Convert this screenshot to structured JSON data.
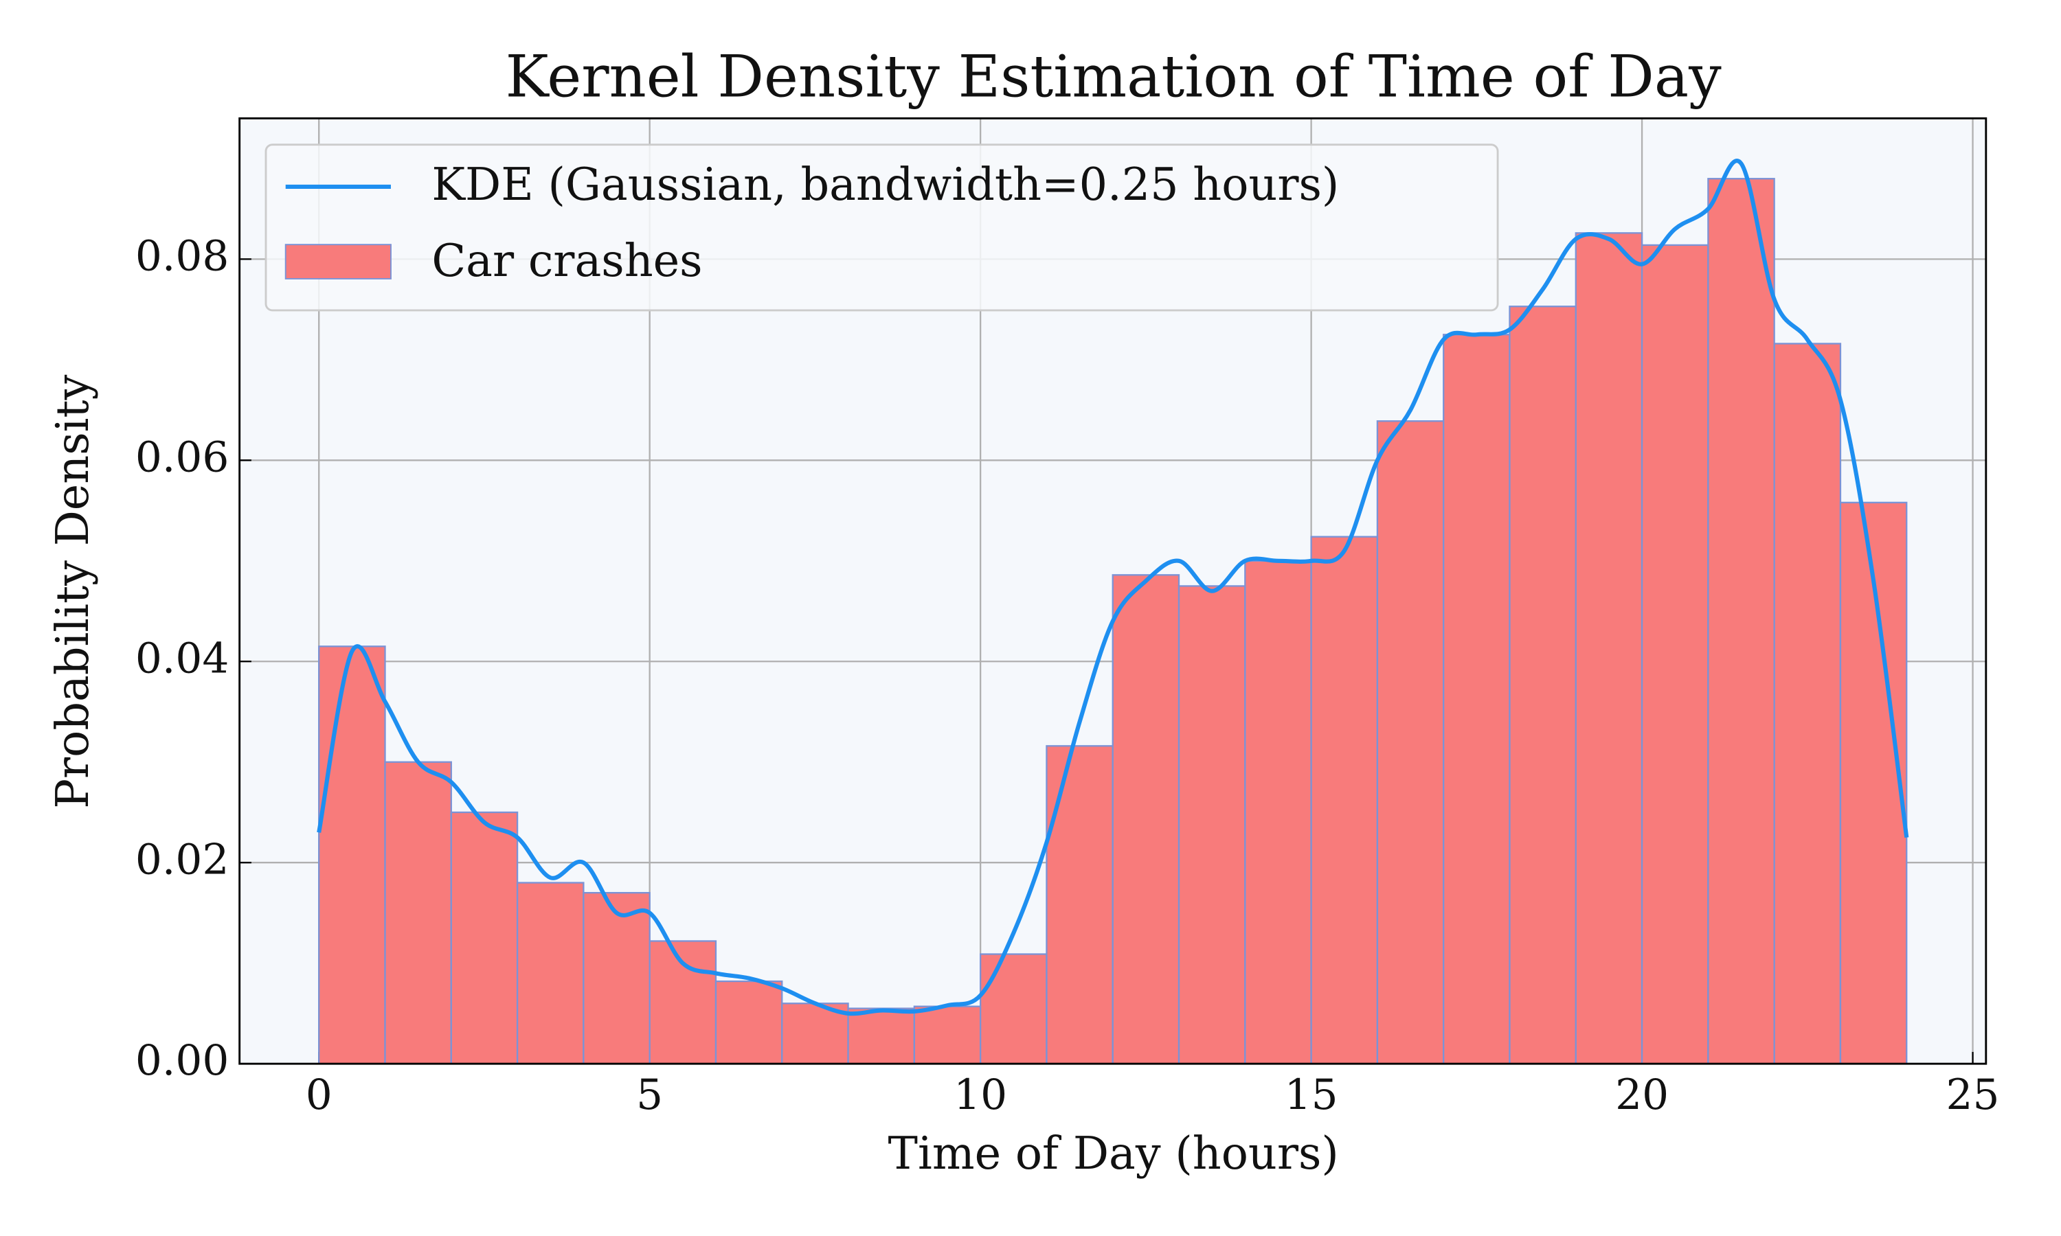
{
  "chart_data": {
    "type": "histogram",
    "title": "Kernel Density Estimation of Time of Day",
    "xlabel": "Time of Day (hours)",
    "ylabel": "Probability Density",
    "bins": [
      0,
      1,
      2,
      3,
      4,
      5,
      6,
      7,
      8,
      9,
      10,
      11,
      12,
      13,
      14,
      15,
      16,
      17,
      18,
      19,
      20,
      21,
      22,
      23,
      24
    ],
    "series": [
      {
        "name": "Car crashes",
        "color": "#f87b7b",
        "edgecolor": "#7b93d6",
        "values": [
          0.0415,
          0.03,
          0.025,
          0.018,
          0.017,
          0.0122,
          0.0082,
          0.006,
          0.0055,
          0.0057,
          0.0109,
          0.0316,
          0.0486,
          0.0475,
          0.05,
          0.0524,
          0.0639,
          0.0725,
          0.0753,
          0.0826,
          0.0814,
          0.088,
          0.0716,
          0.0558
        ]
      }
    ],
    "overlay": {
      "type": "line",
      "name": "KDE (Gaussian, bandwidth=0.25 hours)",
      "color": "#1e8ff0",
      "x": [
        0,
        0.5,
        1,
        1.5,
        2,
        2.5,
        3,
        3.5,
        4,
        4.5,
        5,
        5.5,
        6,
        6.5,
        7,
        7.5,
        8,
        8.5,
        9,
        9.5,
        10,
        10.5,
        11,
        11.5,
        12,
        12.5,
        13,
        13.5,
        14,
        14.5,
        15,
        15.5,
        16,
        16.5,
        17,
        17.5,
        18,
        18.5,
        19,
        19.5,
        20,
        20.5,
        21,
        21.5,
        22,
        22.5,
        23,
        23.5,
        24
      ],
      "values": [
        0.023,
        0.041,
        0.036,
        0.03,
        0.028,
        0.024,
        0.0225,
        0.0185,
        0.02,
        0.015,
        0.015,
        0.01,
        0.009,
        0.0085,
        0.0075,
        0.006,
        0.005,
        0.0053,
        0.0052,
        0.0058,
        0.0068,
        0.013,
        0.022,
        0.034,
        0.044,
        0.048,
        0.05,
        0.047,
        0.05,
        0.05,
        0.05,
        0.051,
        0.06,
        0.065,
        0.072,
        0.0725,
        0.073,
        0.077,
        0.082,
        0.082,
        0.0795,
        0.083,
        0.085,
        0.0895,
        0.076,
        0.072,
        0.066,
        0.048,
        0.0225
      ]
    },
    "xlim": [
      -1.2,
      25.2
    ],
    "ylim": [
      0,
      0.094
    ],
    "xticks": [
      0,
      5,
      10,
      15,
      20,
      25
    ],
    "yticks": [
      {
        "value": 0,
        "label": "0.00"
      },
      {
        "value": 0.02,
        "label": "0.02"
      },
      {
        "value": 0.04,
        "label": "0.04"
      },
      {
        "value": 0.06,
        "label": "0.06"
      },
      {
        "value": 0.08,
        "label": "0.08"
      }
    ],
    "grid": true,
    "legend": "upper left"
  }
}
